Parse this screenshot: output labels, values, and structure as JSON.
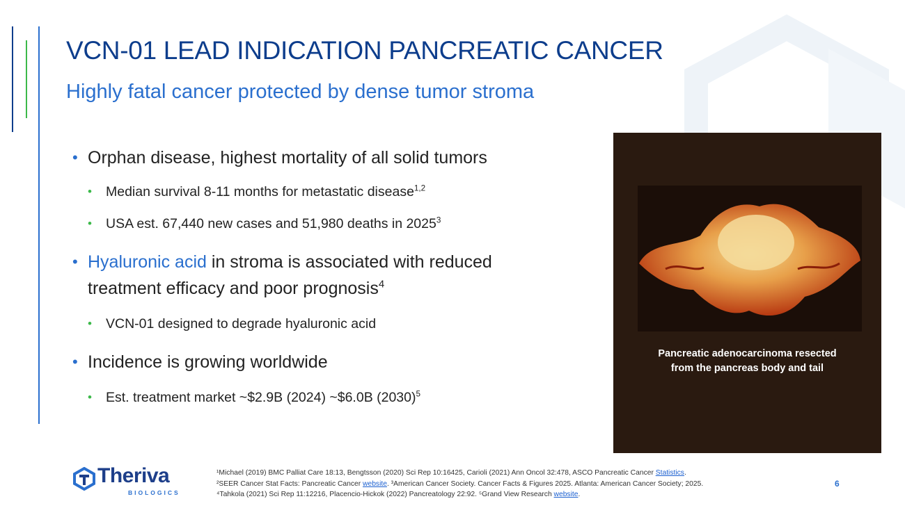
{
  "slide": {
    "title": "VCN-01 LEAD INDICATION PANCREATIC CANCER",
    "subtitle": "Highly fatal cancer protected by dense tumor stroma",
    "page_number": "6"
  },
  "bullets": {
    "b1": {
      "text": "Orphan disease, highest mortality of all solid tumors"
    },
    "b1_1": {
      "text": "Median survival 8-11 months for metastatic disease",
      "sup": "1,2"
    },
    "b1_2": {
      "text": "USA est. 67,440 new cases and 51,980 deaths in 2025",
      "sup": "3"
    },
    "b2": {
      "highlight": "Hyaluronic acid",
      "text": " in stroma is associated with reduced",
      "line2": "treatment efficacy and poor prognosis",
      "sup": "4"
    },
    "b2_1": {
      "text": "VCN-01 designed to degrade hyaluronic acid"
    },
    "b3": {
      "text": "Incidence is growing worldwide"
    },
    "b3_1": {
      "text": "Est. treatment market ~$2.9B (2024) ~$6.0B (2030)",
      "sup": "5"
    }
  },
  "photo": {
    "caption_line1": "Pancreatic adenocarcinoma resected",
    "caption_line2": "from the pancreas body and tail"
  },
  "logo": {
    "name": "Theriva",
    "tagline": "BIOLOGICS"
  },
  "references": {
    "r1": "¹Michael (2019) BMC Palliat Care 18:13, Bengtsson (2020) Sci Rep 10:16425, Carioli (2021) Ann Oncol 32:478, ASCO Pancreatic Cancer ",
    "r1_link": "Statistics",
    "r1_end": ".",
    "r2": "²SEER Cancer Stat Facts: Pancreatic Cancer ",
    "r2_link": "website",
    "r2_end": ". ³American Cancer Society. Cancer Facts & Figures 2025. Atlanta: American Cancer Society; 2025.",
    "r3": "⁴Tahkola (2021) Sci Rep 11:12216, Placencio-Hickok (2022) Pancreatology 22:92. ⁵Grand View Research ",
    "r3_link": "website",
    "r3_end": "."
  },
  "colors": {
    "title": "#0d3d8c",
    "accent_blue": "#2a6fce",
    "accent_green": "#3cb94a"
  }
}
